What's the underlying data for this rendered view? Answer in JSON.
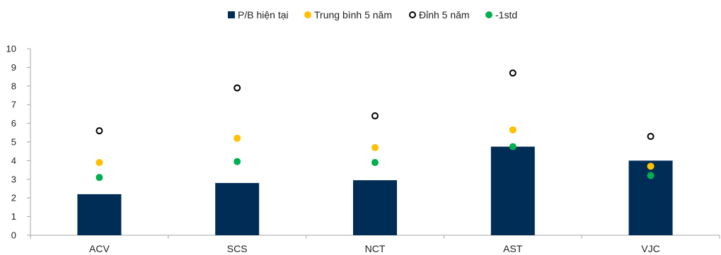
{
  "chart_data": {
    "type": "bar",
    "categories": [
      "ACV",
      "SCS",
      "NCT",
      "AST",
      "VJC"
    ],
    "series": [
      {
        "name": "P/B hiện tại",
        "kind": "bar",
        "color": "#002D56",
        "values": [
          2.2,
          2.8,
          2.95,
          4.75,
          4.0
        ]
      },
      {
        "name": "Trung bình 5 năm",
        "kind": "dot",
        "color": "#FFC000",
        "values": [
          3.9,
          5.2,
          4.7,
          5.65,
          3.7
        ]
      },
      {
        "name": "Đỉnh 5 năm",
        "kind": "ring",
        "color": "#000000",
        "values": [
          5.6,
          7.9,
          6.4,
          8.7,
          5.3
        ]
      },
      {
        "name": "-1std",
        "kind": "dot",
        "color": "#00B050",
        "values": [
          3.1,
          3.95,
          3.9,
          4.75,
          3.2
        ]
      }
    ],
    "y_ticks": [
      "0",
      "1",
      "2",
      "3",
      "4",
      "5",
      "6",
      "7",
      "8",
      "9",
      "10"
    ],
    "ylim": [
      0,
      10
    ],
    "grid": false,
    "legend": "top-center",
    "title": "",
    "xlabel": "",
    "ylabel": ""
  }
}
